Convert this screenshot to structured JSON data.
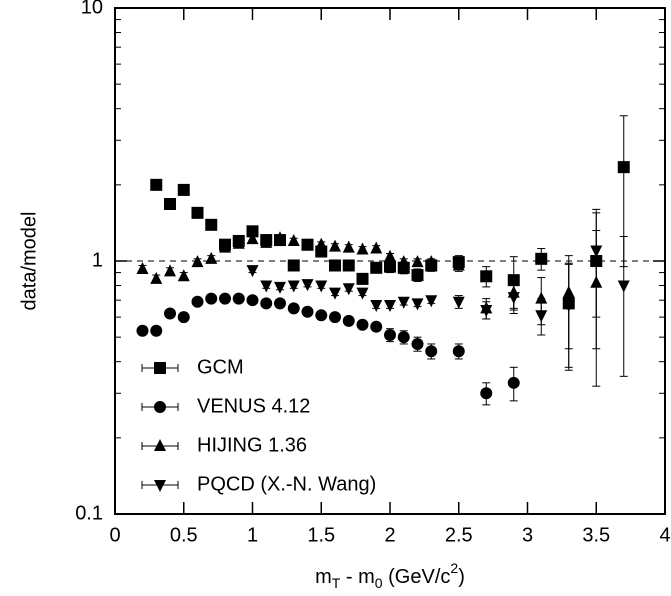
{
  "chart_data": {
    "type": "scatter",
    "x_label_parts": [
      "m",
      "T",
      " - m",
      "0",
      " (GeV/c",
      "2",
      ")"
    ],
    "y_label": "data/model",
    "xlim": [
      0,
      4
    ],
    "xticks": [
      0,
      0.5,
      1,
      1.5,
      2,
      2.5,
      3,
      3.5,
      4
    ],
    "ylim": [
      0.1,
      10
    ],
    "yticks": [
      0.1,
      1,
      10
    ],
    "log_y": true,
    "reference_line": 1,
    "legend": "lower left",
    "series": [
      {
        "name": "GCM",
        "marker": "square",
        "color": "#000000",
        "x": [
          0.3,
          0.4,
          0.5,
          0.6,
          0.7,
          0.8,
          0.9,
          1.0,
          1.1,
          1.2,
          1.3,
          1.4,
          1.5,
          1.6,
          1.7,
          1.8,
          1.9,
          2.0,
          2.1,
          2.2,
          2.3,
          2.5,
          2.7,
          2.9,
          3.1,
          3.3,
          3.5,
          3.7
        ],
        "values": [
          2.0,
          1.68,
          1.91,
          1.55,
          1.39,
          1.16,
          1.2,
          1.31,
          1.21,
          1.21,
          0.96,
          1.16,
          1.09,
          0.96,
          0.96,
          0.85,
          0.94,
          0.95,
          0.94,
          0.88,
          0.96,
          0.99,
          0.87,
          0.84,
          1.02,
          0.68,
          1.0,
          2.35
        ],
        "errors": [
          0.05,
          0.04,
          0.05,
          0.04,
          0.03,
          0.03,
          0.03,
          0.03,
          0.03,
          0.03,
          0.03,
          0.03,
          0.03,
          0.03,
          0.03,
          0.04,
          0.04,
          0.05,
          0.05,
          0.05,
          0.05,
          0.06,
          0.08,
          0.2,
          0.1,
          0.3,
          0.55,
          1.4
        ]
      },
      {
        "name": "VENUS 4.12",
        "marker": "circle",
        "color": "#000000",
        "x": [
          0.2,
          0.3,
          0.4,
          0.5,
          0.6,
          0.7,
          0.8,
          0.9,
          1.0,
          1.1,
          1.2,
          1.3,
          1.4,
          1.5,
          1.6,
          1.7,
          1.8,
          1.9,
          2.0,
          2.1,
          2.2,
          2.3,
          2.5,
          2.7,
          2.9
        ],
        "values": [
          0.53,
          0.53,
          0.62,
          0.6,
          0.69,
          0.71,
          0.71,
          0.71,
          0.7,
          0.68,
          0.68,
          0.65,
          0.63,
          0.61,
          0.6,
          0.58,
          0.56,
          0.55,
          0.51,
          0.5,
          0.47,
          0.44,
          0.44,
          0.3,
          0.33
        ],
        "errors": [
          0.02,
          0.02,
          0.02,
          0.02,
          0.02,
          0.02,
          0.02,
          0.02,
          0.02,
          0.02,
          0.02,
          0.02,
          0.02,
          0.02,
          0.02,
          0.02,
          0.02,
          0.02,
          0.03,
          0.03,
          0.03,
          0.03,
          0.03,
          0.03,
          0.05
        ]
      },
      {
        "name": "HIJING 1.36",
        "marker": "triangle-up",
        "color": "#000000",
        "x": [
          0.2,
          0.3,
          0.4,
          0.5,
          0.6,
          0.7,
          0.8,
          0.9,
          1.0,
          1.1,
          1.2,
          1.3,
          1.4,
          1.5,
          1.6,
          1.7,
          1.8,
          1.9,
          2.0,
          2.1,
          2.2,
          2.3,
          2.5,
          2.7,
          2.9,
          3.1,
          3.3,
          3.5
        ],
        "values": [
          0.93,
          0.85,
          0.91,
          0.87,
          0.99,
          1.02,
          1.13,
          1.17,
          1.22,
          1.18,
          1.23,
          1.2,
          1.15,
          1.16,
          1.14,
          1.13,
          1.11,
          1.12,
          1.04,
          0.99,
          0.99,
          0.99,
          0.96,
          0.65,
          0.75,
          0.71,
          0.75,
          0.82
        ],
        "errors": [
          0.03,
          0.03,
          0.03,
          0.03,
          0.03,
          0.03,
          0.03,
          0.03,
          0.03,
          0.03,
          0.03,
          0.03,
          0.03,
          0.03,
          0.03,
          0.03,
          0.03,
          0.03,
          0.03,
          0.03,
          0.03,
          0.03,
          0.05,
          0.06,
          0.1,
          0.15,
          0.3,
          0.5
        ]
      },
      {
        "name": "PQCD (X.-N. Wang)",
        "marker": "triangle-down",
        "color": "#000000",
        "x": [
          1.0,
          1.1,
          1.2,
          1.3,
          1.4,
          1.5,
          1.6,
          1.7,
          1.8,
          1.9,
          2.0,
          2.1,
          2.2,
          2.3,
          2.5,
          2.7,
          2.9,
          3.1,
          3.3,
          3.5,
          3.7
        ],
        "values": [
          0.92,
          0.8,
          0.79,
          0.8,
          0.81,
          0.8,
          0.75,
          0.78,
          0.75,
          0.67,
          0.67,
          0.69,
          0.68,
          0.7,
          0.69,
          0.64,
          0.72,
          0.61,
          0.67,
          1.1,
          0.8
        ],
        "errors": [
          0.02,
          0.02,
          0.02,
          0.02,
          0.02,
          0.02,
          0.02,
          0.02,
          0.02,
          0.02,
          0.02,
          0.02,
          0.02,
          0.02,
          0.04,
          0.05,
          0.1,
          0.1,
          0.3,
          0.5,
          0.45
        ]
      }
    ]
  }
}
